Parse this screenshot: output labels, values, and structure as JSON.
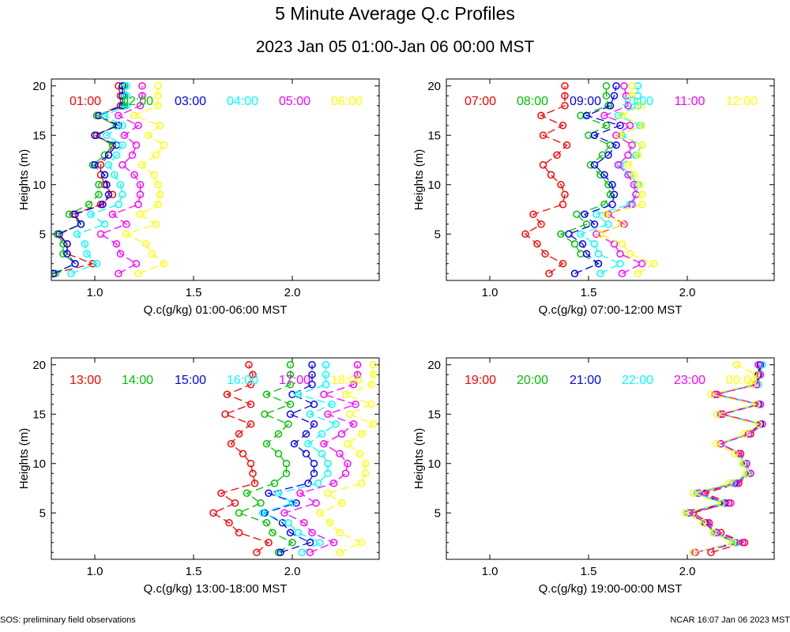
{
  "title": "5 Minute Average Q.c Profiles",
  "subtitle": "2023 Jan 05 01:00-Jan 06 00:00 MST",
  "footer_left": "SOS: preliminary field observations",
  "footer_right": "NCAR 16:07 Jan 06 2023 MST",
  "colors": [
    "#ff0000",
    "#00c000",
    "#0000ff",
    "#00ffff",
    "#ff00ff",
    "#ffff00"
  ],
  "chart_data": [
    {
      "type": "line",
      "xlabel": "Q.c(g/kg) 01:00-06:00 MST",
      "ylabel": "Heights (m)",
      "xlim": [
        0.78,
        2.44
      ],
      "ylim": [
        0.3,
        20.7
      ],
      "xticks": [
        "1.0",
        "1.5",
        "2.0"
      ],
      "yticks": [
        "5",
        "10",
        "15",
        "20"
      ],
      "heights": [
        1,
        2,
        3,
        4,
        5,
        6,
        7,
        8,
        9,
        10,
        11,
        12,
        13,
        14,
        15,
        16,
        17,
        18,
        19,
        20
      ],
      "series": [
        {
          "name": "01:00",
          "values": [
            0.79,
            0.99,
            0.86,
            0.86,
            0.81,
            0.93,
            0.89,
            1.03,
            1.09,
            1.05,
            1.03,
            1.03,
            1.07,
            1.09,
            1.01,
            1.11,
            1.01,
            1.13,
            1.13,
            1.12
          ]
        },
        {
          "name": "02:00",
          "values": [
            0.8,
            0.9,
            0.84,
            0.84,
            0.81,
            0.93,
            0.87,
            0.97,
            1.02,
            1.02,
            1.05,
            0.99,
            1.05,
            1.09,
            1.0,
            1.11,
            1.01,
            1.15,
            1.15,
            1.15
          ]
        },
        {
          "name": "03:00",
          "values": [
            0.79,
            0.9,
            0.86,
            0.86,
            0.82,
            0.93,
            0.9,
            1.04,
            1.07,
            1.06,
            1.05,
            1.0,
            1.07,
            1.11,
            1.0,
            1.12,
            1.02,
            1.14,
            1.14,
            1.14
          ]
        },
        {
          "name": "04:00",
          "values": [
            0.88,
            1.01,
            0.96,
            0.95,
            0.91,
            1.05,
            0.98,
            1.12,
            1.14,
            1.13,
            1.1,
            1.07,
            1.11,
            1.14,
            1.06,
            1.14,
            1.05,
            1.16,
            1.16,
            1.16
          ]
        },
        {
          "name": "05:00",
          "values": [
            1.12,
            1.21,
            1.13,
            1.11,
            1.03,
            1.16,
            1.09,
            1.22,
            1.23,
            1.23,
            1.2,
            1.14,
            1.19,
            1.21,
            1.15,
            1.22,
            1.12,
            1.23,
            1.24,
            1.24
          ]
        },
        {
          "name": "06:00",
          "values": [
            1.22,
            1.35,
            1.29,
            1.26,
            1.16,
            1.31,
            1.23,
            1.32,
            1.33,
            1.32,
            1.3,
            1.24,
            1.31,
            1.35,
            1.27,
            1.33,
            1.2,
            1.32,
            1.32,
            1.32
          ]
        }
      ]
    },
    {
      "type": "line",
      "xlabel": "Q.c(g/kg) 07:00-12:00 MST",
      "ylabel": "Heights (m)",
      "xlim": [
        0.78,
        2.44
      ],
      "ylim": [
        0.3,
        20.7
      ],
      "xticks": [
        "1.0",
        "1.5",
        "2.0"
      ],
      "yticks": [
        "5",
        "10",
        "15",
        "20"
      ],
      "heights": [
        1,
        2,
        3,
        4,
        5,
        6,
        7,
        8,
        9,
        10,
        11,
        12,
        13,
        14,
        15,
        16,
        17,
        18,
        19,
        20
      ],
      "series": [
        {
          "name": "07:00",
          "values": [
            1.3,
            1.37,
            1.28,
            1.24,
            1.18,
            1.26,
            1.22,
            1.37,
            1.38,
            1.36,
            1.31,
            1.27,
            1.34,
            1.39,
            1.27,
            1.37,
            1.26,
            1.38,
            1.38,
            1.38
          ]
        },
        {
          "name": "08:00",
          "values": [
            1.43,
            1.55,
            1.46,
            1.43,
            1.36,
            1.49,
            1.44,
            1.58,
            1.61,
            1.6,
            1.56,
            1.51,
            1.57,
            1.61,
            1.5,
            1.59,
            1.46,
            1.6,
            1.59,
            1.59
          ]
        },
        {
          "name": "09:00",
          "values": [
            1.43,
            1.55,
            1.49,
            1.47,
            1.4,
            1.53,
            1.48,
            1.62,
            1.63,
            1.62,
            1.58,
            1.53,
            1.6,
            1.64,
            1.53,
            1.66,
            1.49,
            1.61,
            1.63,
            1.64
          ]
        },
        {
          "name": "10:00",
          "values": [
            1.56,
            1.66,
            1.55,
            1.53,
            1.46,
            1.6,
            1.54,
            1.71,
            1.74,
            1.75,
            1.71,
            1.66,
            1.74,
            1.77,
            1.67,
            1.76,
            1.65,
            1.75,
            1.75,
            1.75
          ]
        },
        {
          "name": "11:00",
          "values": [
            1.67,
            1.77,
            1.66,
            1.63,
            1.54,
            1.68,
            1.6,
            1.72,
            1.74,
            1.73,
            1.7,
            1.65,
            1.7,
            1.72,
            1.64,
            1.71,
            1.58,
            1.7,
            1.69,
            1.68
          ]
        },
        {
          "name": "12:00",
          "values": [
            1.75,
            1.83,
            1.71,
            1.67,
            1.56,
            1.67,
            1.59,
            1.77,
            1.77,
            1.76,
            1.73,
            1.7,
            1.75,
            1.77,
            1.66,
            1.77,
            1.67,
            1.77,
            1.72,
            1.72
          ]
        }
      ]
    },
    {
      "type": "line",
      "xlabel": "Q.c(g/kg) 13:00-18:00 MST",
      "ylabel": "Heights (m)",
      "xlim": [
        0.78,
        2.44
      ],
      "ylim": [
        0.3,
        20.7
      ],
      "xticks": [
        "1.0",
        "1.5",
        "2.0"
      ],
      "yticks": [
        "5",
        "10",
        "15",
        "20"
      ],
      "heights": [
        1,
        2,
        3,
        4,
        5,
        6,
        7,
        8,
        9,
        10,
        11,
        12,
        13,
        14,
        15,
        16,
        17,
        18,
        19,
        20
      ],
      "series": [
        {
          "name": "13:00",
          "values": [
            1.82,
            1.88,
            1.73,
            1.68,
            1.6,
            1.71,
            1.64,
            1.81,
            1.8,
            1.79,
            1.75,
            1.69,
            1.73,
            1.79,
            1.66,
            1.79,
            1.67,
            1.79,
            1.8,
            1.78
          ]
        },
        {
          "name": "14:00",
          "values": [
            1.93,
            2.0,
            1.9,
            1.87,
            1.73,
            1.84,
            1.77,
            1.91,
            1.97,
            1.97,
            1.93,
            1.87,
            1.93,
            1.98,
            1.86,
            1.99,
            1.87,
            1.99,
            1.99,
            1.99
          ]
        },
        {
          "name": "15:00",
          "values": [
            1.94,
            2.09,
            1.99,
            1.95,
            1.86,
            2.02,
            1.88,
            2.08,
            2.11,
            2.11,
            2.07,
            2.01,
            2.07,
            2.11,
            1.99,
            2.11,
            2.0,
            2.1,
            2.1,
            2.1
          ]
        },
        {
          "name": "16:00",
          "values": [
            2.05,
            2.14,
            2.03,
            1.98,
            1.85,
            2.0,
            1.93,
            2.13,
            2.18,
            2.18,
            2.15,
            2.08,
            2.15,
            2.22,
            2.09,
            2.2,
            2.03,
            2.17,
            2.17,
            2.17
          ]
        },
        {
          "name": "17:00",
          "values": [
            2.09,
            2.21,
            2.1,
            2.06,
            1.96,
            2.12,
            2.04,
            2.21,
            2.27,
            2.28,
            2.24,
            2.16,
            2.25,
            2.31,
            2.18,
            2.32,
            2.16,
            2.31,
            2.33,
            2.33
          ]
        },
        {
          "name": "18:00",
          "values": [
            2.24,
            2.35,
            2.24,
            2.19,
            2.14,
            2.25,
            2.18,
            2.35,
            2.37,
            2.37,
            2.34,
            2.28,
            2.35,
            2.41,
            2.29,
            2.4,
            2.27,
            2.4,
            2.41,
            2.41
          ]
        }
      ]
    },
    {
      "type": "line",
      "xlabel": "Q.c(g/kg) 19:00-00:00 MST",
      "ylabel": "Heights (m)",
      "xlim": [
        0.78,
        2.44
      ],
      "ylim": [
        0.3,
        20.7
      ],
      "xticks": [
        "1.0",
        "1.5",
        "2.0"
      ],
      "yticks": [
        "5",
        "10",
        "15",
        "20"
      ],
      "heights": [
        1,
        2,
        3,
        4,
        5,
        6,
        7,
        8,
        9,
        10,
        11,
        12,
        13,
        14,
        15,
        16,
        17,
        18,
        19,
        20
      ],
      "series": [
        {
          "name": "19:00",
          "values": [
            2.12,
            2.29,
            2.17,
            2.11,
            2.03,
            2.21,
            2.09,
            2.26,
            2.32,
            2.3,
            2.27,
            2.17,
            2.32,
            2.38,
            2.18,
            2.37,
            2.15,
            2.35,
            2.37,
            2.37
          ]
        },
        {
          "name": "20:00",
          "values": [
            2.03,
            2.24,
            2.14,
            2.1,
            2.01,
            2.18,
            2.05,
            2.24,
            2.31,
            2.29,
            2.26,
            2.17,
            2.31,
            2.37,
            2.17,
            2.37,
            2.14,
            2.35,
            2.36,
            2.36
          ]
        },
        {
          "name": "21:00",
          "values": [
            2.04,
            2.25,
            2.14,
            2.09,
            2.01,
            2.19,
            2.05,
            2.24,
            2.31,
            2.29,
            2.26,
            2.17,
            2.31,
            2.37,
            2.17,
            2.36,
            2.14,
            2.35,
            2.36,
            2.37
          ]
        },
        {
          "name": "22:00",
          "values": [
            2.03,
            2.25,
            2.14,
            2.1,
            2.0,
            2.18,
            2.05,
            2.23,
            2.31,
            2.29,
            2.26,
            2.17,
            2.31,
            2.38,
            2.17,
            2.37,
            2.14,
            2.36,
            2.37,
            2.38
          ]
        },
        {
          "name": "23:00",
          "values": [
            2.04,
            2.28,
            2.15,
            2.1,
            2.01,
            2.22,
            2.06,
            2.25,
            2.32,
            2.3,
            2.26,
            2.17,
            2.31,
            2.38,
            2.17,
            2.37,
            2.14,
            2.35,
            2.37,
            2.36
          ]
        },
        {
          "name": "00:00",
          "values": [
            2.03,
            2.23,
            2.13,
            2.08,
            1.99,
            2.17,
            2.03,
            2.21,
            2.3,
            2.28,
            2.24,
            2.15,
            2.29,
            2.36,
            2.15,
            2.35,
            2.12,
            2.33,
            2.35,
            2.25
          ]
        }
      ]
    }
  ]
}
